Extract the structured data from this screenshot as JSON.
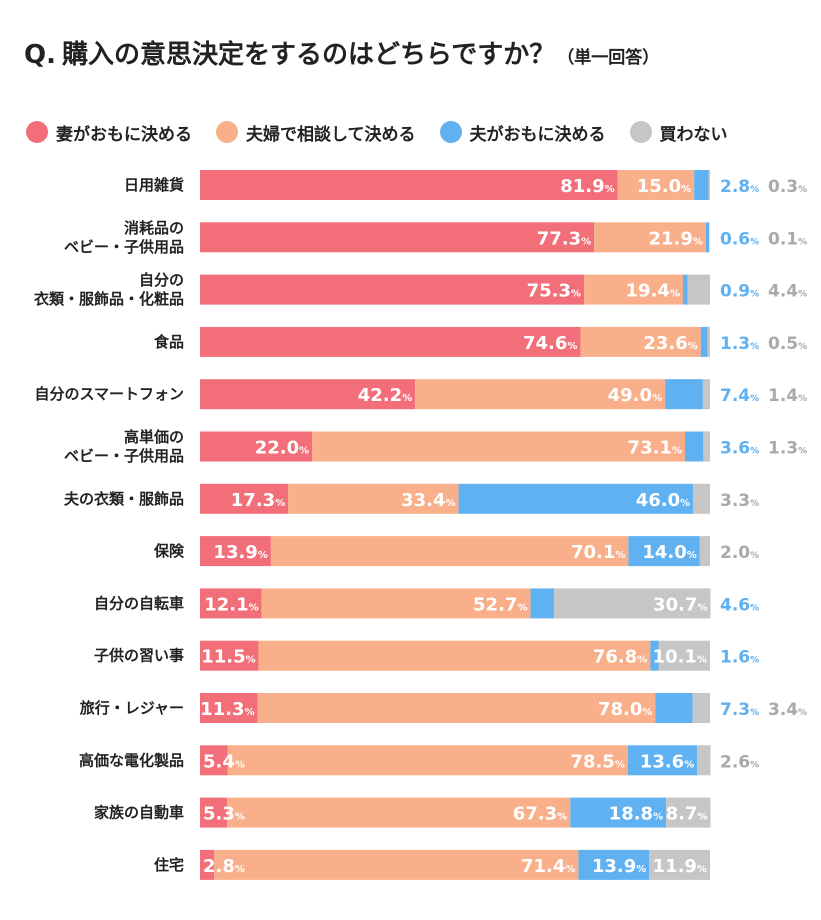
{
  "header": {
    "prefix": "Q.",
    "question": "購入の意思決定をするのはどちらですか？",
    "note": "（単一回答）"
  },
  "chart_data": {
    "type": "bar",
    "orientation": "horizontal",
    "stacked": true,
    "percent_symbol": "%",
    "title": "Q. 購入の意思決定をするのはどちらですか？（単一回答）",
    "legend_position": "top",
    "categories": [
      [
        "日用雑貨"
      ],
      [
        "消耗品の",
        "ベビー・子供用品"
      ],
      [
        "自分の",
        "衣類・服飾品・化粧品"
      ],
      [
        "食品"
      ],
      [
        "自分のスマートフォン"
      ],
      [
        "高単価の",
        "ベビー・子供用品"
      ],
      [
        "夫の衣類・服飾品"
      ],
      [
        "保険"
      ],
      [
        "自分の自転車"
      ],
      [
        "子供の習い事"
      ],
      [
        "旅行・レジャー"
      ],
      [
        "高価な電化製品"
      ],
      [
        "家族の自動車"
      ],
      [
        "住宅"
      ]
    ],
    "series": [
      {
        "name": "妻がおもに決める",
        "color": "#f26f7a",
        "values": [
          81.9,
          77.3,
          75.3,
          74.6,
          42.2,
          22.0,
          17.3,
          13.9,
          12.1,
          11.5,
          11.3,
          5.4,
          5.3,
          2.8
        ]
      },
      {
        "name": "夫婦で相談して決める",
        "color": "#f9b08a",
        "values": [
          15.0,
          21.9,
          19.4,
          23.6,
          49.0,
          73.1,
          33.4,
          70.1,
          52.7,
          76.8,
          78.0,
          78.5,
          67.3,
          71.4
        ]
      },
      {
        "name": "夫がおもに決める",
        "color": "#5fb1f2",
        "values": [
          2.8,
          0.6,
          0.9,
          1.3,
          7.4,
          3.6,
          46.0,
          14.0,
          4.6,
          1.6,
          7.3,
          13.6,
          18.8,
          13.9
        ]
      },
      {
        "name": "買わない",
        "color": "#c6c6c6",
        "values": [
          0.3,
          0.1,
          4.4,
          0.5,
          1.4,
          1.3,
          3.3,
          2.0,
          30.7,
          10.1,
          3.4,
          2.6,
          8.7,
          11.9
        ]
      }
    ],
    "xlim": [
      0,
      100
    ],
    "grid": false
  }
}
